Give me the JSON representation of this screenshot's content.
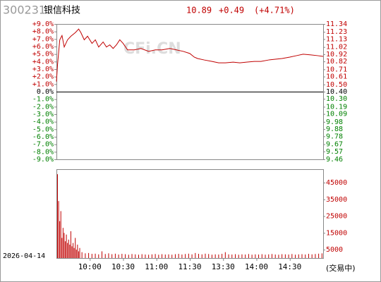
{
  "chart_data": [
    {
      "type": "line",
      "code": "300231",
      "name": "银信科技",
      "last": "10.89",
      "change": "+0.49",
      "change_pct": "(+4.71%)",
      "watermark": "CFi.CN",
      "tick_colors": {
        "up": "#c00000",
        "flat": "#000000",
        "down": "#008000"
      },
      "xlim": [
        0,
        240
      ],
      "ylim": [
        -9,
        9
      ],
      "yticks": [
        {
          "value": 9,
          "label": "+9.0%"
        },
        {
          "value": 8,
          "label": "+8.0%"
        },
        {
          "value": 7,
          "label": "+7.0%"
        },
        {
          "value": 6,
          "label": "+6.0%"
        },
        {
          "value": 5,
          "label": "+5.0%"
        },
        {
          "value": 4,
          "label": "+4.0%"
        },
        {
          "value": 3,
          "label": "+3.0%"
        },
        {
          "value": 2,
          "label": "+2.0%"
        },
        {
          "value": 1,
          "label": "+1.0%"
        },
        {
          "value": 0,
          "label": "0.0%"
        },
        {
          "value": -1,
          "label": "-1.0%"
        },
        {
          "value": -2,
          "label": "-2.0%"
        },
        {
          "value": -3,
          "label": "-3.0%"
        },
        {
          "value": -4,
          "label": "-4.0%"
        },
        {
          "value": -5,
          "label": "-5.0%"
        },
        {
          "value": -6,
          "label": "-6.0%"
        },
        {
          "value": -7,
          "label": "-7.0%"
        },
        {
          "value": -8,
          "label": "-8.0%"
        },
        {
          "value": -9,
          "label": "-9.0%"
        }
      ],
      "y2lim": [
        9.46,
        11.34
      ],
      "y2ticks": [
        11.34,
        11.23,
        11.13,
        11.02,
        10.92,
        10.82,
        10.71,
        10.61,
        {
          "value": 10.5,
          "label": "10.50"
        },
        {
          "value": 10.4,
          "label": "10.40"
        },
        {
          "value": 10.3,
          "label": "10.30"
        },
        10.19,
        10.09,
        9.98,
        9.88,
        9.78,
        9.67,
        9.57,
        9.46
      ],
      "x": [
        0,
        1,
        3,
        5,
        7,
        10,
        13,
        17,
        20,
        22,
        25,
        28,
        32,
        35,
        38,
        42,
        45,
        48,
        51,
        54,
        57,
        60,
        64,
        70,
        76,
        83,
        89,
        95,
        102,
        108,
        114,
        120,
        124,
        127,
        133,
        140,
        146,
        152,
        159,
        165,
        171,
        178,
        184,
        191,
        197,
        203,
        210,
        216,
        222,
        229,
        235,
        240
      ],
      "series": [
        {
          "color": "#c00000",
          "axis": "y2",
          "values": [
            10.54,
            10.78,
            11.12,
            11.18,
            11.02,
            11.12,
            11.17,
            11.22,
            11.27,
            11.22,
            11.12,
            11.17,
            11.07,
            11.12,
            11.02,
            11.09,
            11.02,
            11.05,
            11.0,
            11.05,
            11.12,
            11.07,
            10.98,
            10.98,
            11.0,
            10.96,
            10.98,
            10.98,
            11.0,
            10.98,
            10.96,
            10.93,
            10.88,
            10.86,
            10.84,
            10.82,
            10.8,
            10.8,
            10.81,
            10.8,
            10.81,
            10.82,
            10.82,
            10.84,
            10.85,
            10.86,
            10.88,
            10.9,
            10.92,
            10.91,
            10.9,
            10.89
          ]
        }
      ]
    },
    {
      "type": "bar",
      "date": "2026-04-14",
      "status": "(交易中)",
      "color": "#c00000",
      "xlim": [
        0,
        240
      ],
      "xticks": [
        {
          "value": 30,
          "label": "10:00"
        },
        {
          "value": 60,
          "label": "10:30"
        },
        {
          "value": 90,
          "label": "11:00"
        },
        {
          "value": 120,
          "label": "11:30"
        },
        {
          "value": 150,
          "label": "13:30"
        },
        {
          "value": 180,
          "label": "14:00"
        },
        {
          "value": 210,
          "label": "14:30"
        }
      ],
      "ylim": [
        0,
        53000
      ],
      "yticks": [
        5000,
        15000,
        25000,
        35000,
        45000
      ],
      "x": [
        0,
        1,
        2,
        3,
        4,
        5,
        6,
        7,
        8,
        9,
        10,
        11,
        12,
        13,
        14,
        15,
        16,
        17,
        18,
        19,
        20,
        22,
        25,
        28,
        31,
        34,
        37,
        40,
        43,
        46,
        49,
        52,
        55,
        58,
        61,
        64,
        67,
        70,
        73,
        76,
        79,
        82,
        85,
        88,
        91,
        94,
        97,
        100,
        103,
        106,
        109,
        112,
        115,
        118,
        121,
        124,
        127,
        130,
        133,
        136,
        139,
        142,
        145,
        148,
        151,
        154,
        157,
        160,
        163,
        166,
        169,
        172,
        175,
        178,
        181,
        184,
        187,
        190,
        193,
        196,
        199,
        202,
        205,
        208,
        211,
        214,
        217,
        220,
        223,
        226,
        229,
        232,
        235,
        238
      ],
      "values": [
        50000,
        34000,
        22000,
        28000,
        12000,
        18000,
        15000,
        10000,
        14000,
        9000,
        11000,
        8000,
        16000,
        7000,
        9000,
        6000,
        12000,
        5000,
        8000,
        4000,
        6000,
        3500,
        2800,
        3000,
        2500,
        2600,
        2200,
        4000,
        2400,
        2800,
        2300,
        2600,
        2100,
        2500,
        2300,
        2000,
        2400,
        2200,
        2000,
        2300,
        2100,
        2000,
        2200,
        2400,
        2000,
        2300,
        2100,
        2200,
        2000,
        2300,
        2500,
        2100,
        2400,
        2600,
        2200,
        3000,
        2500,
        2200,
        2600,
        2400,
        2000,
        2200,
        2100,
        2500,
        3500,
        2200,
        2100,
        2300,
        2000,
        2200,
        2100,
        2400,
        2000,
        2200,
        2100,
        2300,
        2000,
        2200,
        2400,
        2100,
        2000,
        2300,
        2200,
        2100,
        2400,
        2000,
        2200,
        2300,
        2100,
        2500,
        2200,
        2400,
        2600,
        2800
      ]
    }
  ]
}
